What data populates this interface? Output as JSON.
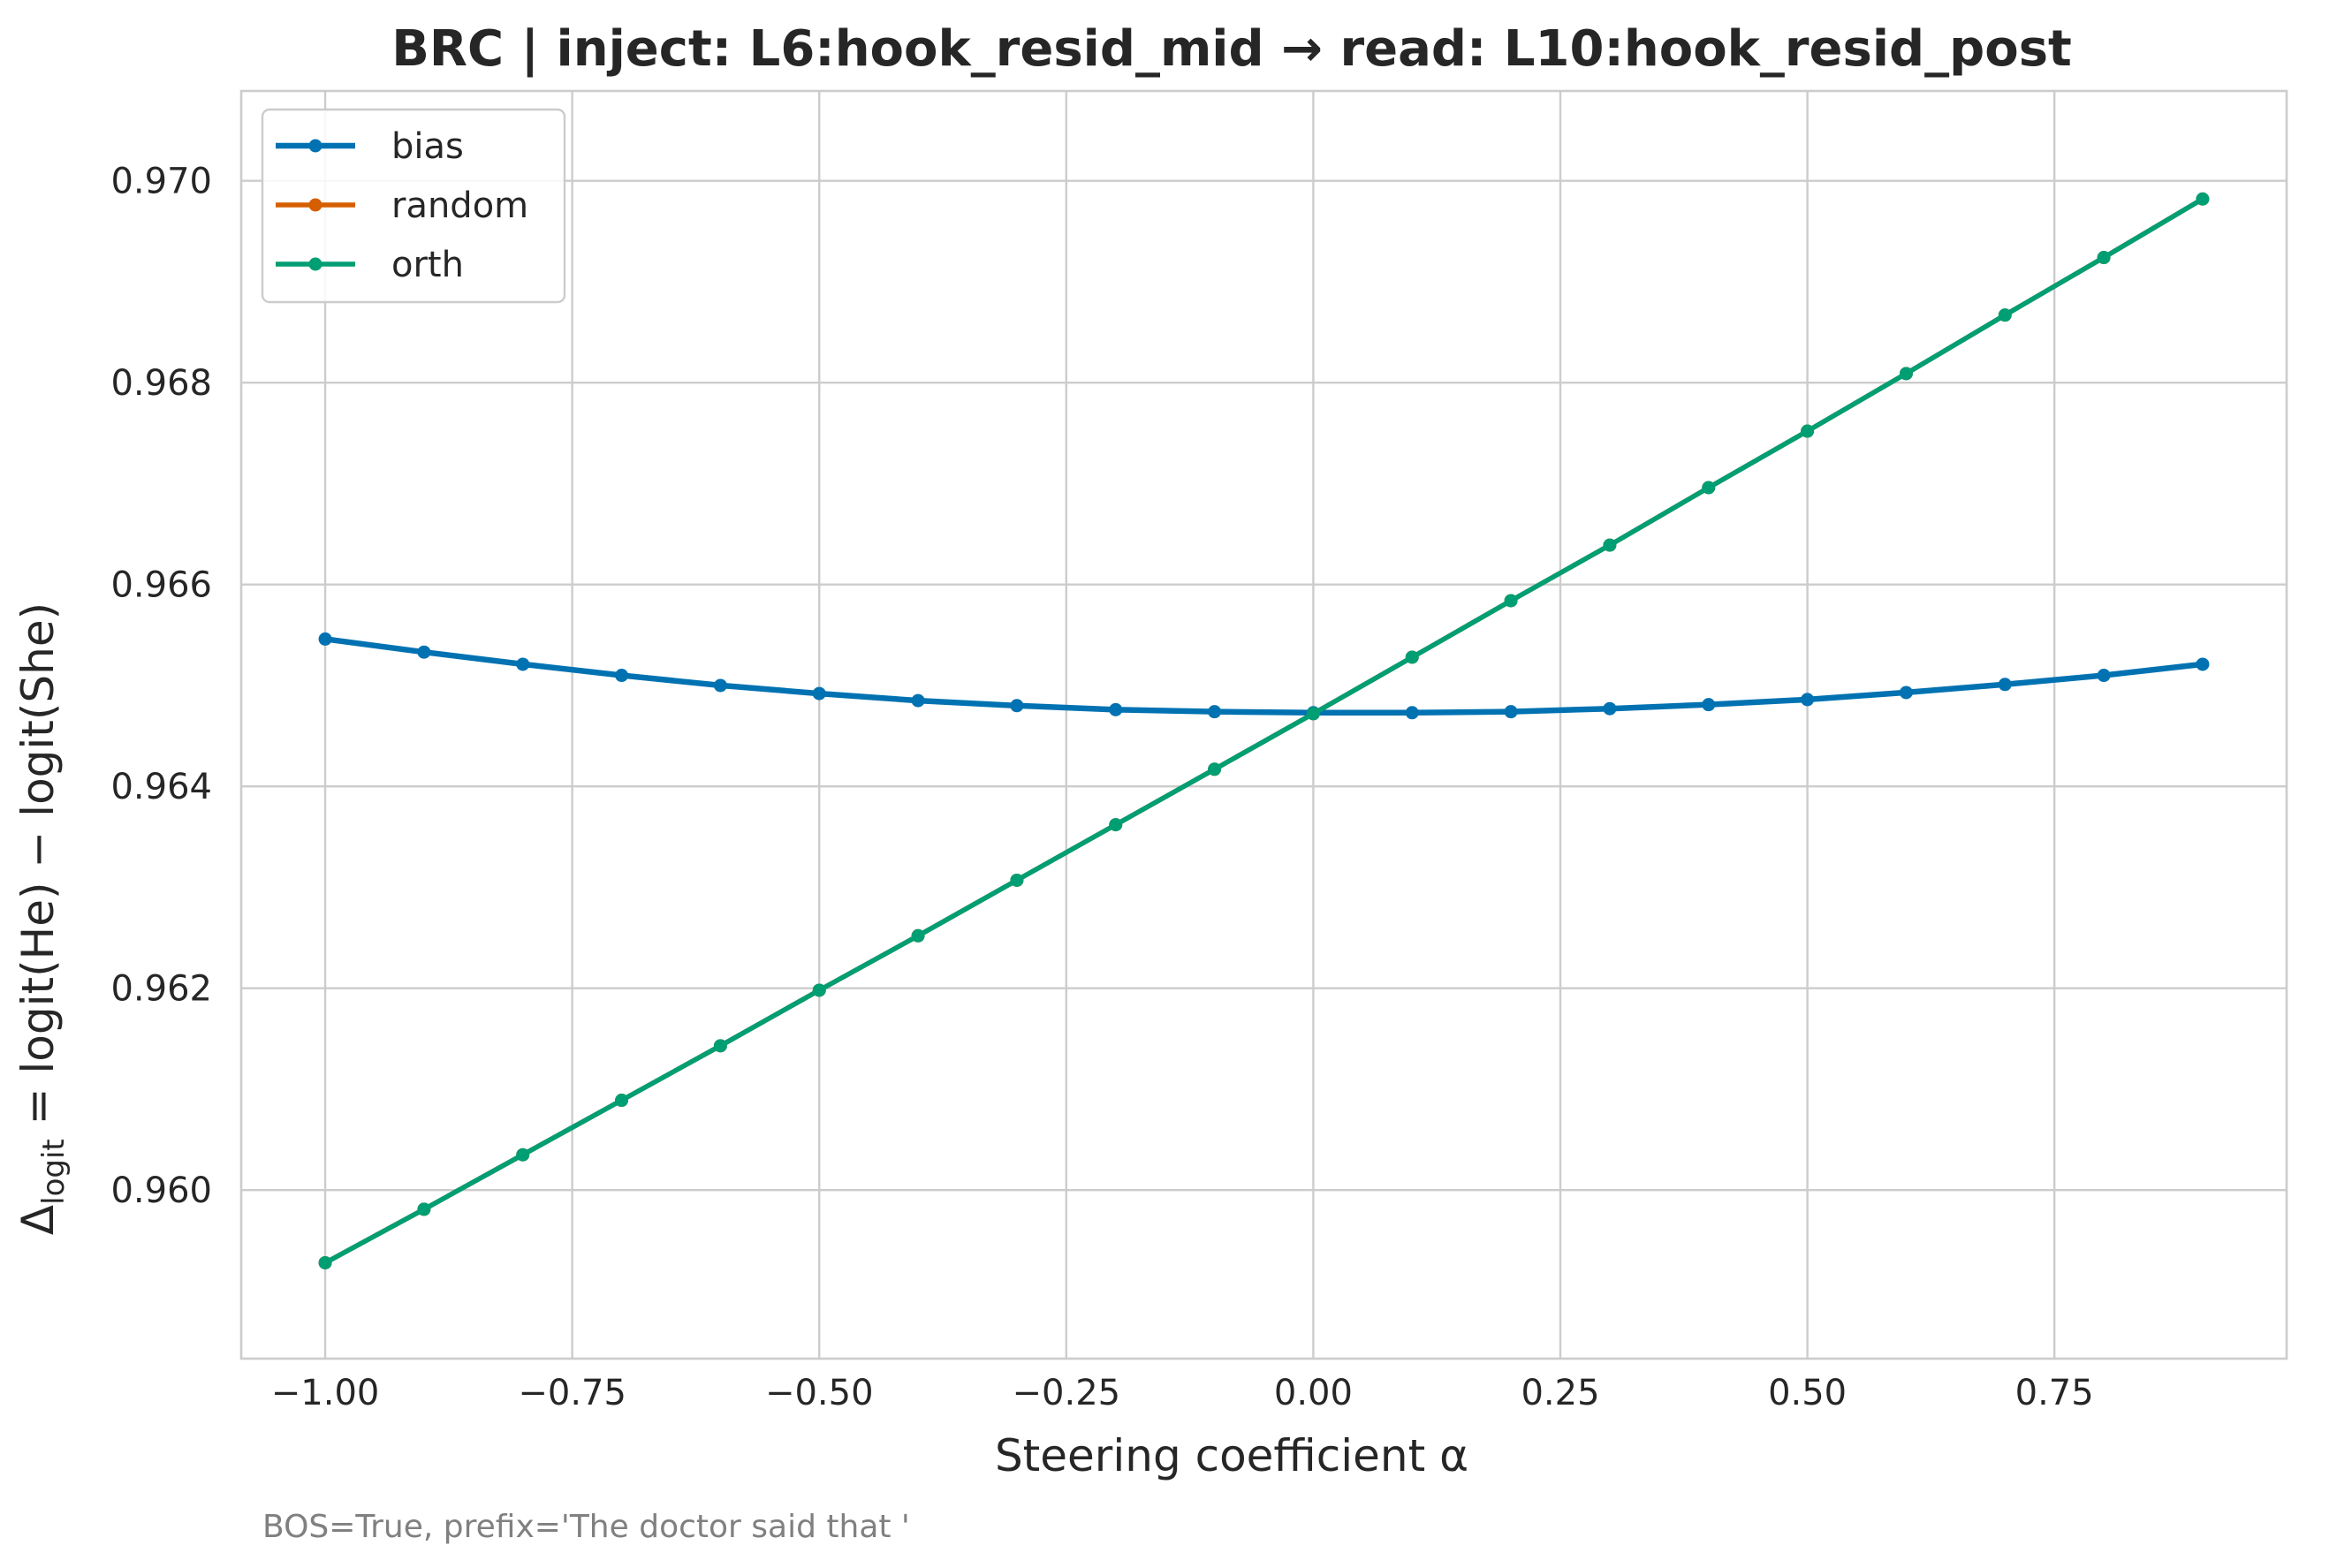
{
  "chart_data": {
    "type": "line",
    "title": "BRC | inject: L6:hook_resid_mid → read: L10:hook_resid_post",
    "xlabel": "Steering coefficient α",
    "ylabel": {
      "prefix": "Δ",
      "subscript": "logit",
      "rest": " = logit(He) − logit(She)"
    },
    "footnote": "BOS=True, prefix='The doctor said that '",
    "xlim": [
      -1.085,
      0.985
    ],
    "ylim": [
      0.95833,
      0.97089
    ],
    "xticks": [
      -1.0,
      -0.75,
      -0.5,
      -0.25,
      0.0,
      0.25,
      0.5,
      0.75
    ],
    "xtick_labels": [
      "−1.00",
      "−0.75",
      "−0.50",
      "−0.25",
      "0.00",
      "0.25",
      "0.50",
      "0.75"
    ],
    "yticks": [
      0.96,
      0.962,
      0.964,
      0.966,
      0.968,
      0.97
    ],
    "ytick_labels": [
      "0.960",
      "0.962",
      "0.964",
      "0.966",
      "0.968",
      "0.970"
    ],
    "grid": true,
    "legend_position": "top-left",
    "x": [
      -1.0,
      -0.9,
      -0.8,
      -0.7,
      -0.6,
      -0.5,
      -0.4,
      -0.3,
      -0.2,
      -0.1,
      0.0,
      0.1,
      0.2,
      0.3,
      0.4,
      0.5,
      0.6,
      0.7,
      0.8,
      0.9
    ],
    "series": [
      {
        "name": "bias",
        "color": "#0072b2",
        "values": [
          0.96546,
          0.96533,
          0.96521,
          0.9651,
          0.965,
          0.96492,
          0.96485,
          0.9648,
          0.96476,
          0.96474,
          0.96473,
          0.96473,
          0.96474,
          0.96477,
          0.96481,
          0.96486,
          0.96493,
          0.96501,
          0.9651,
          0.96521
        ]
      },
      {
        "name": "random",
        "color": "#d55e00",
        "values": [
          0.95928,
          0.95981,
          0.96035,
          0.96089,
          0.96143,
          0.96198,
          0.96252,
          0.96307,
          0.96362,
          0.96417,
          0.96472,
          0.96528,
          0.96584,
          0.96639,
          0.96696,
          0.96752,
          0.96809,
          0.96867,
          0.96924,
          0.96982
        ]
      },
      {
        "name": "orth",
        "color": "#009e73",
        "values": [
          0.95928,
          0.95981,
          0.96035,
          0.96089,
          0.96143,
          0.96198,
          0.96252,
          0.96307,
          0.96362,
          0.96417,
          0.96472,
          0.96528,
          0.96584,
          0.96639,
          0.96696,
          0.96752,
          0.96809,
          0.96867,
          0.96924,
          0.96982
        ]
      }
    ]
  }
}
